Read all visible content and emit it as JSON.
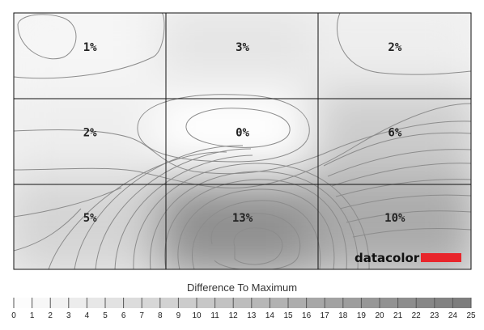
{
  "chart_data": {
    "type": "heatmap",
    "rows": 3,
    "cols": 3,
    "cells": [
      [
        "1%",
        "3%",
        "2%"
      ],
      [
        "2%",
        "0%",
        "6%"
      ],
      [
        "5%",
        "13%",
        "10%"
      ]
    ],
    "values": [
      [
        1,
        3,
        2
      ],
      [
        2,
        0,
        6
      ],
      [
        5,
        13,
        10
      ]
    ],
    "scale_title": "Difference To Maximum",
    "scale_min": 0,
    "scale_max": 25,
    "scale_ticks": [
      "0",
      "1",
      "2",
      "3",
      "4",
      "5",
      "6",
      "7",
      "8",
      "9",
      "10",
      "11",
      "12",
      "13",
      "14",
      "15",
      "16",
      "17",
      "18",
      "19",
      "20",
      "21",
      "22",
      "23",
      "24",
      "25"
    ],
    "brand": "datacolor",
    "colors": {
      "brand_bar": "#e8252b",
      "grid": "#111111",
      "contour": "#8c8c8c",
      "low": "#ffffff",
      "high": "#7a7a7a"
    }
  }
}
